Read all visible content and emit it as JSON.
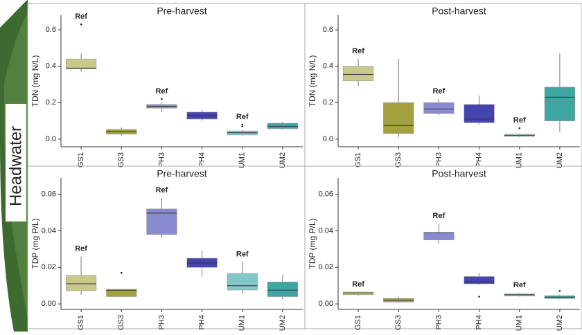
{
  "row_label": "Headwater",
  "chart_data": [
    {
      "type": "box",
      "title": "Pre-harvest",
      "ylabel": "TDN (mg N/L)",
      "categories": [
        "GS1",
        "GS3",
        "PH3",
        "PH4",
        "UM1",
        "UM2"
      ],
      "colors": [
        "#c8c88a",
        "#a3a23f",
        "#8a8ad0",
        "#4545ad",
        "#82c8c8",
        "#3fa5a3"
      ],
      "box_labels": [
        "Ref",
        null,
        "Ref",
        null,
        "Ref",
        null
      ],
      "boxes": [
        {
          "min": 0.37,
          "q1": 0.385,
          "median": 0.39,
          "q3": 0.44,
          "max": 0.47,
          "outliers": [
            0.63
          ]
        },
        {
          "min": 0.02,
          "q1": 0.027,
          "median": 0.04,
          "q3": 0.053,
          "max": 0.065,
          "outliers": []
        },
        {
          "min": 0.15,
          "q1": 0.17,
          "median": 0.18,
          "q3": 0.19,
          "max": 0.2,
          "outliers": [
            0.22
          ]
        },
        {
          "min": 0.1,
          "q1": 0.11,
          "median": 0.13,
          "q3": 0.148,
          "max": 0.16,
          "outliers": []
        },
        {
          "min": 0.02,
          "q1": 0.023,
          "median": 0.035,
          "q3": 0.045,
          "max": 0.05,
          "outliers": [
            0.07,
            0.08
          ]
        },
        {
          "min": 0.05,
          "q1": 0.057,
          "median": 0.07,
          "q3": 0.087,
          "max": 0.095,
          "outliers": []
        }
      ],
      "ylim": [
        -0.042,
        0.68
      ],
      "yticks": [
        {
          "value": 0,
          "label": "0.0"
        },
        0.2,
        0.4,
        0.6
      ]
    },
    {
      "type": "box",
      "title": "Post-harvest",
      "ylabel": "TDN (mg N/L)",
      "categories": [
        "GS1",
        "GS3",
        "PH3",
        "PH4",
        "UM1",
        "UM2"
      ],
      "colors": [
        "#c8c88a",
        "#a3a23f",
        "#8a8ad0",
        "#4545ad",
        "#82c8c8",
        "#3fa5a3"
      ],
      "box_labels": [
        "Ref",
        null,
        "Ref",
        null,
        "Ref",
        null
      ],
      "boxes": [
        {
          "min": 0.29,
          "q1": 0.32,
          "median": 0.355,
          "q3": 0.4,
          "max": 0.44,
          "outliers": []
        },
        {
          "min": 0.01,
          "q1": 0.03,
          "median": 0.075,
          "q3": 0.2,
          "max": 0.44,
          "outliers": []
        },
        {
          "min": 0.13,
          "q1": 0.14,
          "median": 0.165,
          "q3": 0.2,
          "max": 0.22,
          "outliers": []
        },
        {
          "min": 0.08,
          "q1": 0.09,
          "median": 0.11,
          "q3": 0.19,
          "max": 0.24,
          "outliers": []
        },
        {
          "min": 0.01,
          "q1": 0.015,
          "median": 0.02,
          "q3": 0.027,
          "max": 0.03,
          "outliers": [
            0.06
          ]
        },
        {
          "min": 0.04,
          "q1": 0.1,
          "median": 0.23,
          "q3": 0.285,
          "max": 0.47,
          "outliers": []
        }
      ],
      "ylim": [
        -0.042,
        0.68
      ],
      "yticks": [
        {
          "value": 0,
          "label": "0.0"
        },
        0.2,
        0.4,
        0.6
      ]
    },
    {
      "type": "box",
      "title": "Pre-harvest",
      "ylabel": "TDP (mg P/L)",
      "categories": [
        "GS1",
        "GS3",
        "PH3",
        "PH4",
        "UM1",
        "UM2"
      ],
      "colors": [
        "#c8c88a",
        "#a3a23f",
        "#8a8ad0",
        "#4545ad",
        "#82c8c8",
        "#3fa5a3"
      ],
      "box_labels": [
        "Ref",
        null,
        "Ref",
        null,
        "Ref",
        null
      ],
      "boxes": [
        {
          "min": 0.005,
          "q1": 0.0072,
          "median": 0.011,
          "q3": 0.0156,
          "max": 0.026,
          "outliers": []
        },
        {
          "min": 0.004,
          "q1": 0.004,
          "median": 0.0075,
          "q3": 0.008,
          "max": 0.008,
          "outliers": [
            0.017
          ]
        },
        {
          "min": 0.036,
          "q1": 0.038,
          "median": 0.0497,
          "q3": 0.052,
          "max": 0.058,
          "outliers": []
        },
        {
          "min": 0.015,
          "q1": 0.02,
          "median": 0.0224,
          "q3": 0.025,
          "max": 0.029,
          "outliers": []
        },
        {
          "min": 0.006,
          "q1": 0.0076,
          "median": 0.01,
          "q3": 0.0167,
          "max": 0.023,
          "outliers": []
        },
        {
          "min": 0.0025,
          "q1": 0.004,
          "median": 0.0075,
          "q3": 0.012,
          "max": 0.016,
          "outliers": []
        }
      ],
      "ylim": [
        -0.003,
        0.069
      ],
      "yticks": [
        {
          "value": 0,
          "label": "0.00"
        },
        {
          "value": 0.02,
          "label": "0.02"
        },
        {
          "value": 0.04,
          "label": "0.04"
        },
        {
          "value": 0.06,
          "label": "0.06"
        }
      ]
    },
    {
      "type": "box",
      "title": "Post-harvest",
      "ylabel": "TDP (mg P/L)",
      "categories": [
        "GS1",
        "GS3",
        "PH3",
        "PH4",
        "UM1",
        "UM2"
      ],
      "colors": [
        "#c8c88a",
        "#a3a23f",
        "#8a8ad0",
        "#4545ad",
        "#82c8c8",
        "#3fa5a3"
      ],
      "box_labels": [
        "Ref",
        null,
        "Ref",
        null,
        "Ref",
        null
      ],
      "boxes": [
        {
          "min": 0.0045,
          "q1": 0.005,
          "median": 0.006,
          "q3": 0.0065,
          "max": 0.0065,
          "outliers": []
        },
        {
          "min": 0.0008,
          "q1": 0.001,
          "median": 0.002,
          "q3": 0.003,
          "max": 0.004,
          "outliers": []
        },
        {
          "min": 0.033,
          "q1": 0.035,
          "median": 0.039,
          "q3": 0.039,
          "max": 0.044,
          "outliers": []
        },
        {
          "min": 0.0105,
          "q1": 0.011,
          "median": 0.012,
          "q3": 0.015,
          "max": 0.017,
          "outliers": [
            0.004
          ]
        },
        {
          "min": 0.004,
          "q1": 0.0043,
          "median": 0.005,
          "q3": 0.0055,
          "max": 0.006,
          "outliers": []
        },
        {
          "min": 0.0025,
          "q1": 0.003,
          "median": 0.0037,
          "q3": 0.0045,
          "max": 0.005,
          "outliers": [
            0.007
          ]
        }
      ],
      "ylim": [
        -0.003,
        0.069
      ],
      "yticks": [
        {
          "value": 0,
          "label": "0.00"
        },
        {
          "value": 0.02,
          "label": "0.02"
        },
        {
          "value": 0.04,
          "label": "0.04"
        },
        {
          "value": 0.06,
          "label": "0.06"
        }
      ]
    }
  ]
}
